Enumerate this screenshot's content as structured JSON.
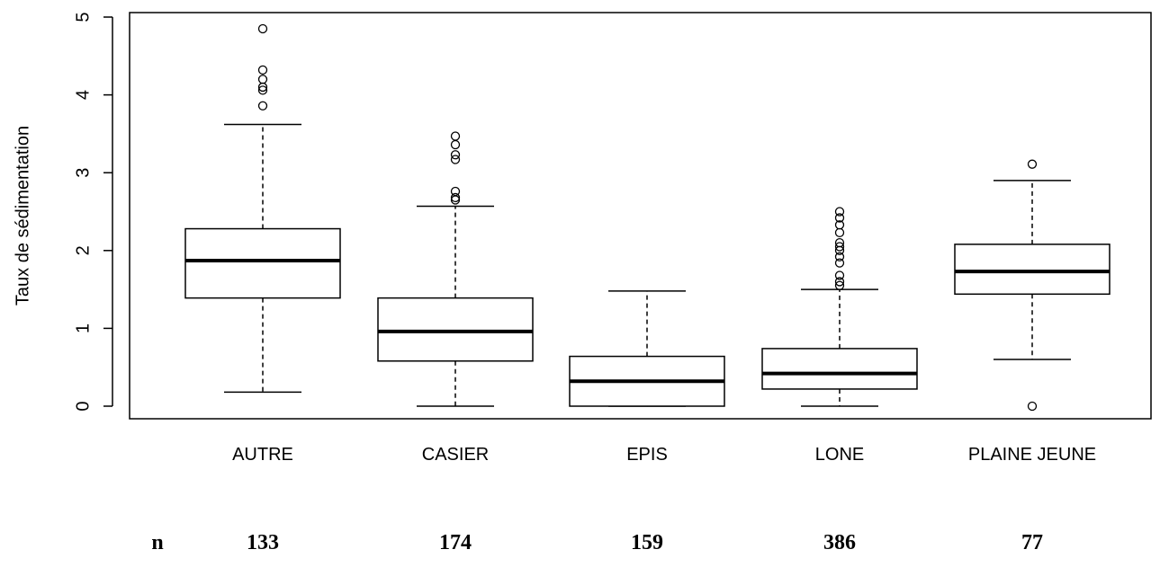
{
  "chart_data": {
    "type": "box",
    "ylabel": "Taux de sédimentation",
    "xlabel": "",
    "ylim": [
      0,
      5
    ],
    "yticks": [
      0,
      1,
      2,
      3,
      4,
      5
    ],
    "grid": false,
    "categories": [
      "AUTRE",
      "CASIER",
      "EPIS",
      "LONE",
      "PLAINE JEUNE"
    ],
    "boxes": [
      {
        "category": "AUTRE",
        "whisker_low": 0.18,
        "q1": 1.39,
        "median": 1.87,
        "q3": 2.28,
        "whisker_high": 3.62,
        "outliers": [
          3.86,
          4.06,
          4.1,
          4.2,
          4.32,
          4.85
        ]
      },
      {
        "category": "CASIER",
        "whisker_low": 0.0,
        "q1": 0.58,
        "median": 0.96,
        "q3": 1.39,
        "whisker_high": 2.57,
        "outliers": [
          2.65,
          2.68,
          2.76,
          3.17,
          3.23,
          3.36,
          3.47
        ]
      },
      {
        "category": "EPIS",
        "whisker_low": 0.0,
        "q1": 0.0,
        "median": 0.32,
        "q3": 0.64,
        "whisker_high": 1.48,
        "outliers": []
      },
      {
        "category": "LONE",
        "whisker_low": 0.0,
        "q1": 0.22,
        "median": 0.42,
        "q3": 0.74,
        "whisker_high": 1.5,
        "outliers": [
          1.55,
          1.6,
          1.68,
          1.84,
          1.92,
          2.0,
          2.05,
          2.1,
          2.23,
          2.33,
          2.42,
          2.5
        ]
      },
      {
        "category": "PLAINE JEUNE",
        "whisker_low": 0.6,
        "q1": 1.44,
        "median": 1.73,
        "q3": 2.08,
        "whisker_high": 2.9,
        "outliers": [
          3.11,
          0.0
        ]
      }
    ],
    "sample_sizes": {
      "label": "n",
      "values": [
        "133",
        "174",
        "159",
        "386",
        "77"
      ]
    }
  }
}
